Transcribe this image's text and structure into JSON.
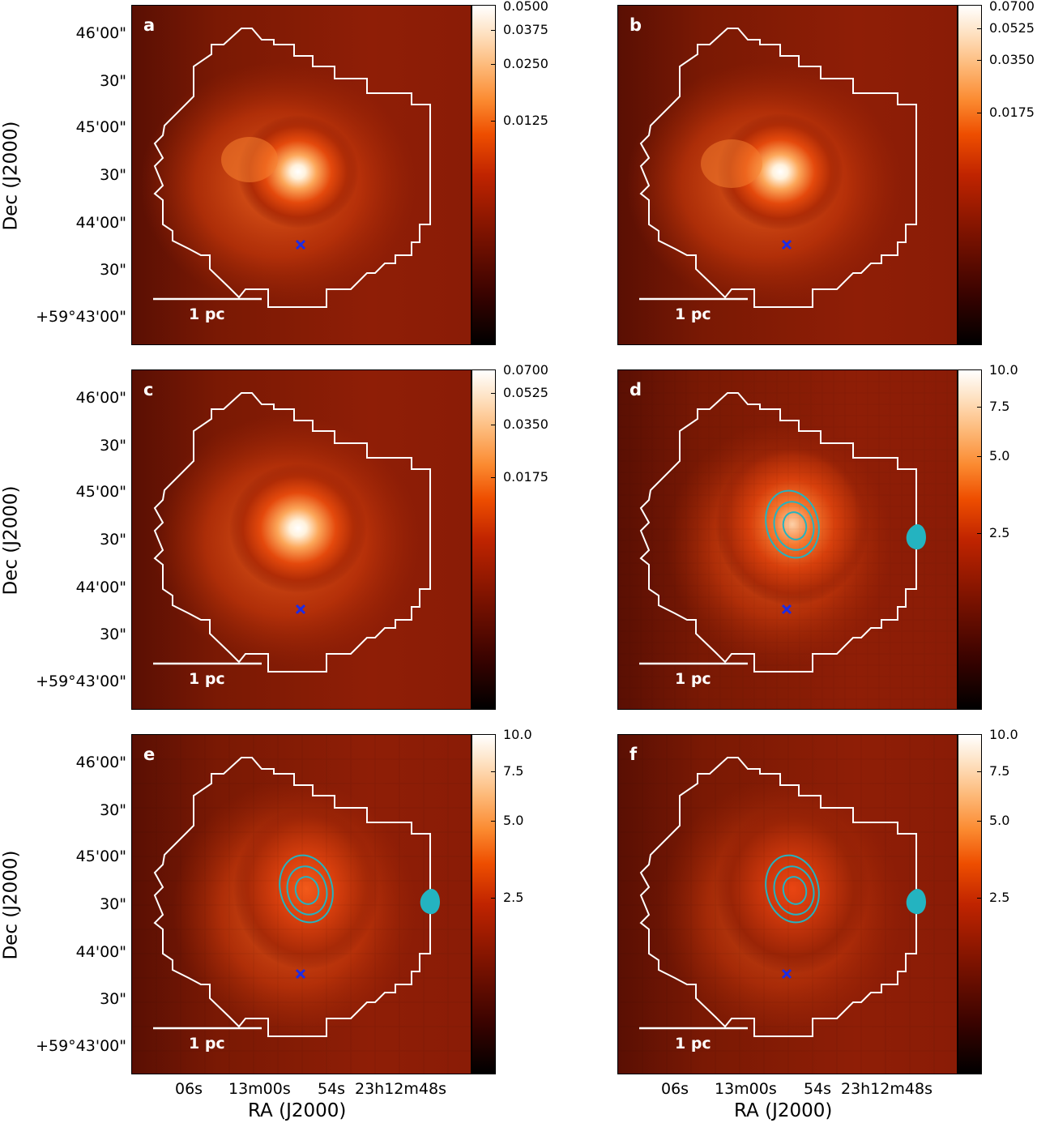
{
  "figure": {
    "xaxis_title": "RA (J2000)",
    "yaxis_title": "Dec (J2000)",
    "dec_ticks": [
      "46'00\"",
      "30\"",
      "45'00\"",
      "30\"",
      "44'00\"",
      "30\"",
      "+59°43'00\""
    ],
    "ra_ticks": [
      "06s",
      "13m00s",
      "54s",
      "23h12m48s"
    ],
    "scale_bar_label": "1 pc",
    "marker_color": "#1b2ce8",
    "contour_color": "#24b3c0",
    "region_outline_color": "#ffffff"
  },
  "panels": [
    {
      "label": "a",
      "colorbar": [
        "0.0500",
        "0.0375",
        "0.0250",
        "0.0125"
      ]
    },
    {
      "label": "b",
      "colorbar": [
        "0.0700",
        "0.0525",
        "0.0350",
        "0.0175"
      ]
    },
    {
      "label": "c",
      "colorbar": [
        "0.0700",
        "0.0525",
        "0.0350",
        "0.0175"
      ]
    },
    {
      "label": "d",
      "colorbar": [
        "10.0",
        "7.5",
        "5.0",
        "2.5"
      ]
    },
    {
      "label": "e",
      "colorbar": [
        "10.0",
        "7.5",
        "5.0",
        "2.5"
      ]
    },
    {
      "label": "f",
      "colorbar": [
        "10.0",
        "7.5",
        "5.0",
        "2.5"
      ]
    }
  ]
}
